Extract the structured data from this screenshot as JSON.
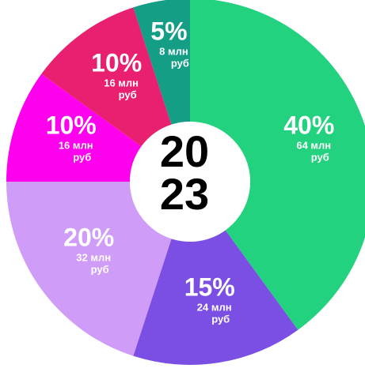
{
  "chart_data": {
    "type": "donut",
    "center_label": [
      "20",
      "23"
    ],
    "categories": [
      null,
      null,
      null,
      null,
      null,
      null
    ],
    "values": [
      40,
      15,
      20,
      10,
      10,
      5
    ],
    "value_labels": [
      "40%",
      "15%",
      "20%",
      "10%",
      "10%",
      "5%"
    ],
    "amount_labels": [
      "64 млн",
      "24 млн",
      "32 млн",
      "16 млн",
      "16 млн",
      "8 млн"
    ],
    "unit": "руб",
    "colors": [
      "#23d27f",
      "#7b4fe3",
      "#cf9cf7",
      "#ff00ee",
      "#e8206f",
      "#149e86"
    ]
  }
}
